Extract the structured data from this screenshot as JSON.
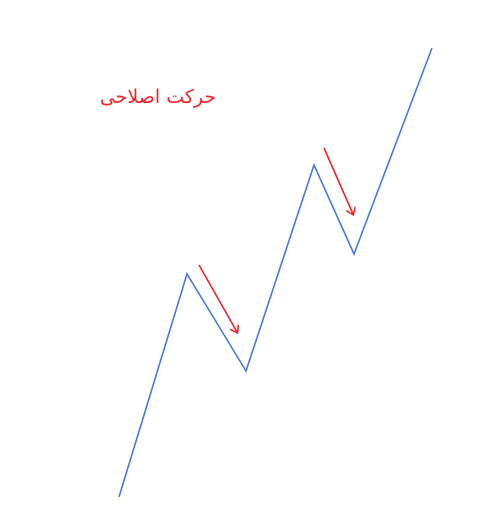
{
  "diagram": {
    "label": "حرکت اصلاحی",
    "colors": {
      "price_line": "#4a7ad6",
      "arrow": "#e8262b",
      "label": "#e8262b"
    },
    "icons": [
      "trend-line",
      "down-arrow-icon"
    ]
  }
}
